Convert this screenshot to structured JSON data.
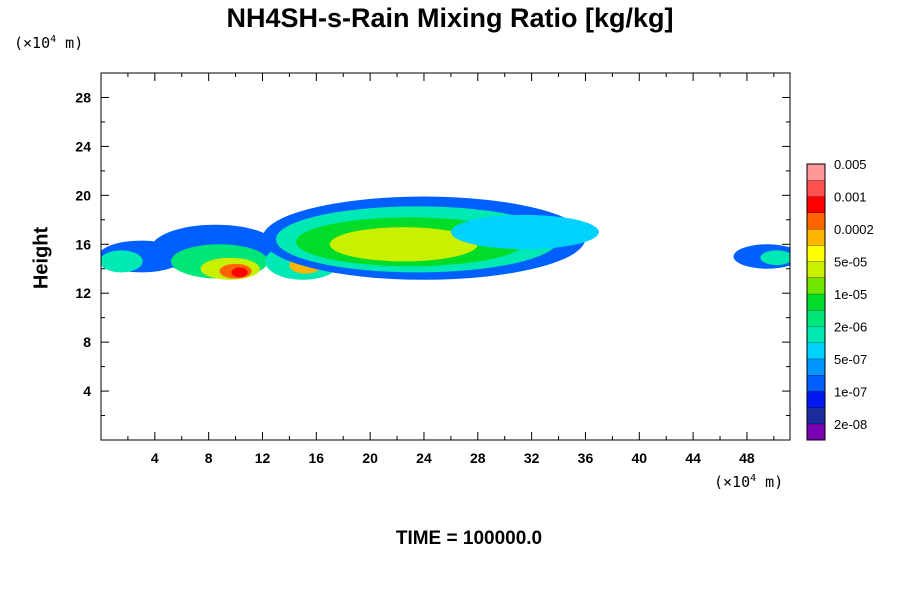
{
  "chart_data": {
    "type": "heatmap",
    "title": "NH4SH-s-Rain Mixing Ratio [kg/kg]",
    "xlabel": "",
    "ylabel": "Height",
    "x_unit_prefix": "(×10",
    "x_unit_exp": "4",
    "x_unit_suffix": " m)",
    "y_unit_prefix": "(×10",
    "y_unit_exp": "4",
    "y_unit_suffix": " m)",
    "xlim": [
      0,
      51.2
    ],
    "ylim": [
      0,
      30
    ],
    "xticks": [
      "4",
      "8",
      "12",
      "16",
      "20",
      "24",
      "28",
      "32",
      "36",
      "40",
      "44",
      "48"
    ],
    "xtick_values": [
      4,
      8,
      12,
      16,
      20,
      24,
      28,
      32,
      36,
      40,
      44,
      48
    ],
    "yticks": [
      "4",
      "8",
      "12",
      "16",
      "20",
      "24",
      "28"
    ],
    "ytick_values": [
      4,
      8,
      12,
      16,
      20,
      24,
      28
    ],
    "footer": "TIME = 100000.0",
    "colorbar": {
      "colors": [
        "#7a00b4",
        "#1c2a9e",
        "#0018f0",
        "#0060ff",
        "#0096ff",
        "#00d2ff",
        "#00e8b4",
        "#00e678",
        "#00dc28",
        "#6ee600",
        "#c8f000",
        "#ffff00",
        "#ffb400",
        "#ff6400",
        "#ff0000",
        "#ff5050",
        "#ff9999"
      ],
      "labels": [
        "2e-08",
        "1e-07",
        "5e-07",
        "2e-06",
        "1e-05",
        "5e-05",
        "0.0002",
        "0.001",
        "0.005"
      ]
    },
    "field": {
      "description_levels": "0=transparent, 1..16 index into colorbar",
      "blobs": [
        {
          "x": 3.0,
          "y": 15.0,
          "rx": 3.2,
          "ry": 1.3,
          "level": 3
        },
        {
          "x": 1.5,
          "y": 14.6,
          "rx": 1.6,
          "ry": 0.9,
          "level": 6
        },
        {
          "x": 8.5,
          "y": 15.6,
          "rx": 4.8,
          "ry": 2.0,
          "level": 3
        },
        {
          "x": 8.8,
          "y": 14.6,
          "rx": 3.6,
          "ry": 1.4,
          "level": 7
        },
        {
          "x": 9.6,
          "y": 14.0,
          "rx": 2.2,
          "ry": 0.9,
          "level": 10
        },
        {
          "x": 10.0,
          "y": 13.8,
          "rx": 1.2,
          "ry": 0.6,
          "level": 13
        },
        {
          "x": 10.3,
          "y": 13.7,
          "rx": 0.6,
          "ry": 0.4,
          "level": 14
        },
        {
          "x": 15.0,
          "y": 14.6,
          "rx": 2.8,
          "ry": 1.5,
          "level": 6
        },
        {
          "x": 15.2,
          "y": 14.3,
          "rx": 1.2,
          "ry": 0.7,
          "level": 12
        },
        {
          "x": 24.0,
          "y": 16.5,
          "rx": 12.0,
          "ry": 3.4,
          "level": 3
        },
        {
          "x": 23.5,
          "y": 16.4,
          "rx": 10.5,
          "ry": 2.7,
          "level": 6
        },
        {
          "x": 23.0,
          "y": 16.2,
          "rx": 8.5,
          "ry": 2.0,
          "level": 8
        },
        {
          "x": 22.5,
          "y": 16.0,
          "rx": 5.5,
          "ry": 1.4,
          "level": 10
        },
        {
          "x": 31.5,
          "y": 17.0,
          "rx": 5.5,
          "ry": 1.4,
          "level": 5
        },
        {
          "x": 49.5,
          "y": 15.0,
          "rx": 2.5,
          "ry": 1.0,
          "level": 3
        },
        {
          "x": 50.2,
          "y": 14.9,
          "rx": 1.2,
          "ry": 0.6,
          "level": 6
        }
      ]
    }
  }
}
